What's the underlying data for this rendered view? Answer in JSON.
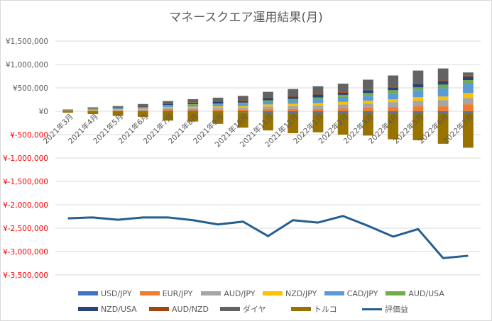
{
  "chart_data": {
    "type": "bar",
    "subtype": "stacked-bar-with-line",
    "title": "マネースクエア運用結果(月)",
    "xlabel": "",
    "ylabel": "",
    "ylim": [
      -3500000,
      1500000
    ],
    "yticks": [
      1500000,
      1000000,
      500000,
      0,
      -500000,
      -1000000,
      -1500000,
      -2000000,
      -2500000,
      -3000000,
      -3500000
    ],
    "ytick_labels": [
      "¥1,500,000",
      "¥1,000,000",
      "¥500,000",
      "¥0",
      "¥-500,000",
      "¥-1,000,000",
      "¥-1,500,000",
      "¥-2,000,000",
      "¥-2,500,000",
      "¥-3,000,000",
      "¥-3,500,000"
    ],
    "positive_tick_color": "#595959",
    "negative_tick_color": "#ff0000",
    "grid": true,
    "legend_position": "bottom",
    "categories": [
      "2021年3月",
      "2021年4月",
      "2021年5月",
      "2021年6月",
      "2021年7月",
      "2021年8月",
      "2021年9月",
      "2021年10月",
      "2021年11月",
      "2021年12月",
      "2022年1月",
      "2022年2月",
      "2022年3月",
      "2022年4月",
      "2022年5月",
      "2022年6月",
      "2022年7月"
    ],
    "series": [
      {
        "name": "USD/JPY",
        "color": "#4472c4",
        "type": "bar",
        "values": [
          2000,
          5000,
          5000,
          5000,
          8000,
          8000,
          5000,
          -20000,
          -30000,
          -30000,
          -30000,
          -30000,
          -30000,
          -30000,
          -30000,
          -30000,
          -30000
        ]
      },
      {
        "name": "EUR/JPY",
        "color": "#ed7d31",
        "type": "bar",
        "values": [
          5000,
          8000,
          12000,
          15000,
          30000,
          30000,
          30000,
          35000,
          50000,
          50000,
          50000,
          60000,
          75000,
          90000,
          105000,
          105000,
          150000
        ]
      },
      {
        "name": "AUD/JPY",
        "color": "#a5a5a5",
        "type": "bar",
        "values": [
          5000,
          10000,
          10000,
          20000,
          30000,
          35000,
          40000,
          45000,
          50000,
          60000,
          75000,
          85000,
          90000,
          105000,
          120000,
          135000,
          135000
        ]
      },
      {
        "name": "NZD/JPY",
        "color": "#ffc000",
        "type": "bar",
        "values": [
          5000,
          10000,
          15000,
          15000,
          20000,
          25000,
          30000,
          30000,
          45000,
          50000,
          50000,
          55000,
          60000,
          60000,
          75000,
          75000,
          105000
        ]
      },
      {
        "name": "CAD/JPY",
        "color": "#5b9bd5",
        "type": "bar",
        "values": [
          5000,
          15000,
          15000,
          20000,
          30000,
          40000,
          45000,
          60000,
          60000,
          75000,
          90000,
          105000,
          105000,
          135000,
          150000,
          180000,
          200000
        ]
      },
      {
        "name": "AUD/USA",
        "color": "#70ad47",
        "type": "bar",
        "values": [
          3000,
          8000,
          8000,
          15000,
          15000,
          15000,
          15000,
          15000,
          30000,
          30000,
          30000,
          45000,
          60000,
          60000,
          60000,
          75000,
          75000
        ]
      },
      {
        "name": "NZD/USA",
        "color": "#264478",
        "type": "bar",
        "values": [
          5000,
          10000,
          15000,
          15000,
          20000,
          30000,
          40000,
          40000,
          45000,
          45000,
          60000,
          45000,
          60000,
          60000,
          75000,
          75000,
          75000
        ]
      },
      {
        "name": "AUD/NZD",
        "color": "#9e480e",
        "type": "bar",
        "values": [
          3000,
          3000,
          5000,
          5000,
          5000,
          10000,
          10000,
          15000,
          15000,
          15000,
          15000,
          15000,
          15000,
          15000,
          15000,
          15000,
          30000
        ]
      },
      {
        "name": "ダイヤ",
        "color": "#636363",
        "type": "bar",
        "values": [
          5000,
          15000,
          25000,
          45000,
          60000,
          65000,
          75000,
          90000,
          120000,
          150000,
          165000,
          180000,
          210000,
          240000,
          270000,
          255000,
          60000
        ]
      },
      {
        "name": "トルコ",
        "color": "#997300",
        "type": "bar",
        "values": [
          -30000,
          -60000,
          -100000,
          -120000,
          -200000,
          -220000,
          -270000,
          -330000,
          -380000,
          -440000,
          -420000,
          -470000,
          -490000,
          -570000,
          -590000,
          -665000,
          -750000
        ]
      },
      {
        "name": "評価益",
        "color": "#255e91",
        "type": "line",
        "values": [
          -2290000,
          -2270000,
          -2320000,
          -2270000,
          -2270000,
          -2330000,
          -2420000,
          -2360000,
          -2670000,
          -2330000,
          -2380000,
          -2240000,
          -2450000,
          -2680000,
          -2520000,
          -3140000,
          -3090000
        ]
      }
    ]
  }
}
